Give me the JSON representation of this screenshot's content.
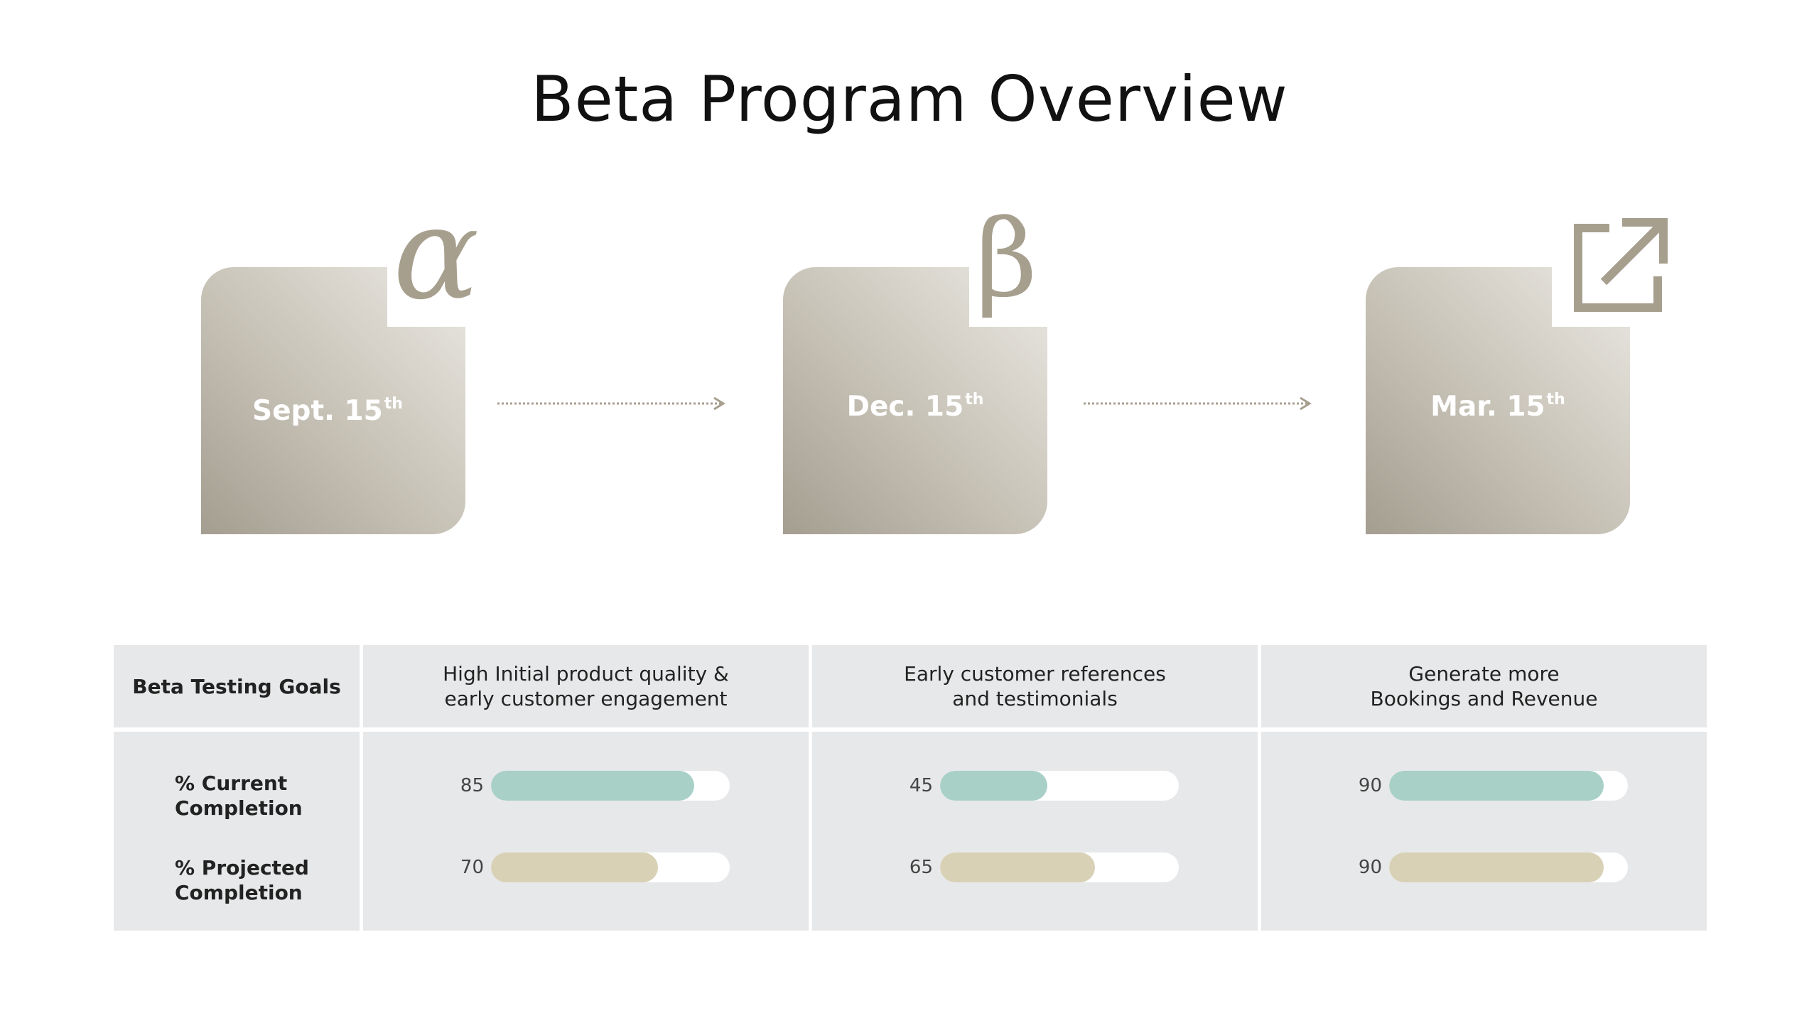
{
  "title": "Beta Program Overview",
  "milestones": [
    {
      "date": "Sept. 15",
      "suffix": "th",
      "symbol": "α",
      "icon": "alpha-symbol"
    },
    {
      "date": "Dec. 15",
      "suffix": "th",
      "symbol": "β",
      "icon": "beta-symbol"
    },
    {
      "date": "Mar. 15",
      "suffix": "th",
      "symbol": "",
      "icon": "external-link-icon"
    }
  ],
  "table": {
    "corner_label": "Beta Testing Goals",
    "row_labels": {
      "current": "% Current\nCompletion",
      "projected": "% Projected\nCompletion"
    },
    "goals": [
      {
        "title": "High Initial product quality &\nearly customer engagement",
        "current": 85,
        "projected": 70
      },
      {
        "title": "Early customer references\nand testimonials",
        "current": 45,
        "projected": 65
      },
      {
        "title": "Generate more\nBookings and Revenue",
        "current": 90,
        "projected": 90
      }
    ]
  },
  "colors": {
    "current_bar": "#a8d0c7",
    "projected_bar": "#d8d1b6",
    "milestone_dark": "#a49e91",
    "symbol": "#a79f8e",
    "table_bg": "#e7e8e9"
  }
}
